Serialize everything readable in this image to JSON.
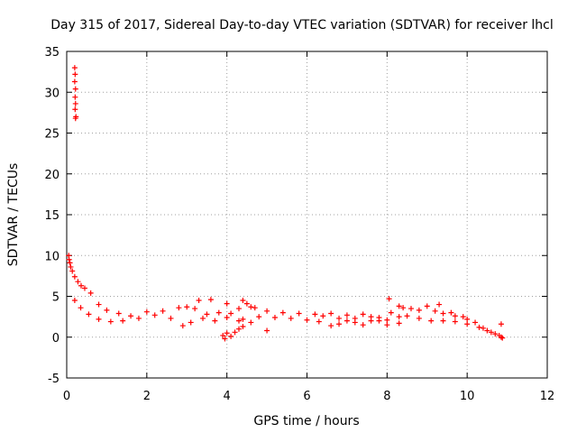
{
  "chart_data": {
    "type": "scatter",
    "title": "Day 315 of 2017, Sidereal Day-to-day VTEC variation (SDTVAR) for receiver lhcl",
    "xlabel": "GPS time / hours",
    "ylabel": "SDTVAR / TECUs",
    "xlim": [
      0,
      12
    ],
    "ylim": [
      -5,
      35
    ],
    "xticks": [
      "0",
      "2",
      "4",
      "6",
      "8",
      "10",
      "12"
    ],
    "yticks": [
      "-5",
      "0",
      "5",
      "10",
      "15",
      "20",
      "25",
      "30",
      "35"
    ],
    "grid": true,
    "marker": "plus",
    "series_color": "#ff0000",
    "series": [
      {
        "name": "lhcl",
        "points": [
          [
            0.2,
            33.0
          ],
          [
            0.21,
            32.2
          ],
          [
            0.2,
            31.3
          ],
          [
            0.22,
            30.4
          ],
          [
            0.21,
            29.4
          ],
          [
            0.22,
            28.6
          ],
          [
            0.21,
            27.9
          ],
          [
            0.23,
            27.0
          ],
          [
            0.22,
            26.8
          ],
          [
            0.05,
            10.0
          ],
          [
            0.06,
            9.5
          ],
          [
            0.08,
            9.1
          ],
          [
            0.1,
            8.6
          ],
          [
            0.14,
            8.1
          ],
          [
            0.2,
            7.4
          ],
          [
            0.28,
            6.8
          ],
          [
            0.36,
            6.3
          ],
          [
            0.45,
            6.0
          ],
          [
            0.6,
            5.4
          ],
          [
            0.8,
            4.0
          ],
          [
            1.0,
            3.3
          ],
          [
            1.3,
            2.9
          ],
          [
            1.6,
            2.6
          ],
          [
            2.0,
            3.1
          ],
          [
            2.4,
            3.2
          ],
          [
            2.8,
            3.6
          ],
          [
            3.0,
            3.7
          ],
          [
            3.3,
            4.5
          ],
          [
            3.6,
            4.6
          ],
          [
            4.0,
            4.1
          ],
          [
            4.3,
            3.5
          ],
          [
            4.6,
            3.7
          ],
          [
            5.0,
            3.2
          ],
          [
            5.4,
            3.0
          ],
          [
            5.8,
            2.9
          ],
          [
            6.2,
            2.8
          ],
          [
            6.4,
            2.6
          ],
          [
            0.2,
            4.5
          ],
          [
            0.35,
            3.6
          ],
          [
            0.55,
            2.8
          ],
          [
            0.8,
            2.2
          ],
          [
            1.1,
            1.9
          ],
          [
            1.4,
            2.0
          ],
          [
            1.8,
            2.3
          ],
          [
            2.2,
            2.7
          ],
          [
            2.6,
            2.3
          ],
          [
            2.9,
            1.4
          ],
          [
            3.1,
            1.8
          ],
          [
            3.4,
            2.3
          ],
          [
            3.7,
            2.0
          ],
          [
            4.0,
            2.4
          ],
          [
            4.3,
            2.0
          ],
          [
            4.6,
            1.8
          ],
          [
            5.0,
            0.8
          ],
          [
            3.2,
            3.5
          ],
          [
            3.5,
            2.8
          ],
          [
            3.8,
            3.0
          ],
          [
            4.1,
            2.9
          ],
          [
            4.4,
            2.2
          ],
          [
            4.8,
            2.5
          ],
          [
            5.2,
            2.4
          ],
          [
            5.6,
            2.3
          ],
          [
            6.0,
            2.1
          ],
          [
            6.3,
            1.9
          ],
          [
            3.95,
            -0.2
          ],
          [
            3.9,
            0.2
          ],
          [
            4.0,
            0.5
          ],
          [
            4.1,
            0.1
          ],
          [
            4.2,
            0.6
          ],
          [
            4.3,
            1.0
          ],
          [
            4.4,
            1.3
          ],
          [
            4.4,
            4.5
          ],
          [
            4.5,
            4.1
          ],
          [
            4.7,
            3.6
          ],
          [
            6.6,
            2.9
          ],
          [
            6.8,
            2.3
          ],
          [
            7.0,
            2.0
          ],
          [
            7.2,
            2.3
          ],
          [
            7.4,
            2.8
          ],
          [
            7.6,
            2.5
          ],
          [
            7.8,
            2.0
          ],
          [
            8.0,
            2.1
          ],
          [
            8.1,
            3.0
          ],
          [
            6.6,
            1.4
          ],
          [
            6.8,
            1.6
          ],
          [
            7.0,
            2.7
          ],
          [
            7.2,
            1.8
          ],
          [
            7.4,
            1.5
          ],
          [
            7.6,
            2.0
          ],
          [
            7.8,
            2.4
          ],
          [
            8.0,
            1.5
          ],
          [
            8.05,
            4.7
          ],
          [
            8.3,
            1.7
          ],
          [
            8.3,
            2.5
          ],
          [
            8.3,
            3.8
          ],
          [
            8.4,
            3.6
          ],
          [
            8.6,
            3.5
          ],
          [
            8.8,
            3.3
          ],
          [
            9.0,
            3.8
          ],
          [
            9.2,
            3.2
          ],
          [
            9.4,
            2.9
          ],
          [
            9.7,
            2.6
          ],
          [
            10.0,
            2.2
          ],
          [
            10.2,
            1.8
          ],
          [
            8.5,
            2.6
          ],
          [
            8.8,
            2.3
          ],
          [
            9.1,
            2.0
          ],
          [
            9.4,
            2.0
          ],
          [
            9.7,
            1.9
          ],
          [
            10.0,
            1.6
          ],
          [
            10.3,
            1.2
          ],
          [
            9.3,
            4.0
          ],
          [
            9.6,
            3.0
          ],
          [
            9.9,
            2.5
          ],
          [
            10.4,
            1.1
          ],
          [
            10.5,
            0.8
          ],
          [
            10.6,
            0.6
          ],
          [
            10.7,
            0.4
          ],
          [
            10.8,
            0.2
          ],
          [
            10.85,
            0.0
          ],
          [
            10.88,
            -0.1
          ],
          [
            10.85,
            1.6
          ]
        ]
      }
    ]
  }
}
